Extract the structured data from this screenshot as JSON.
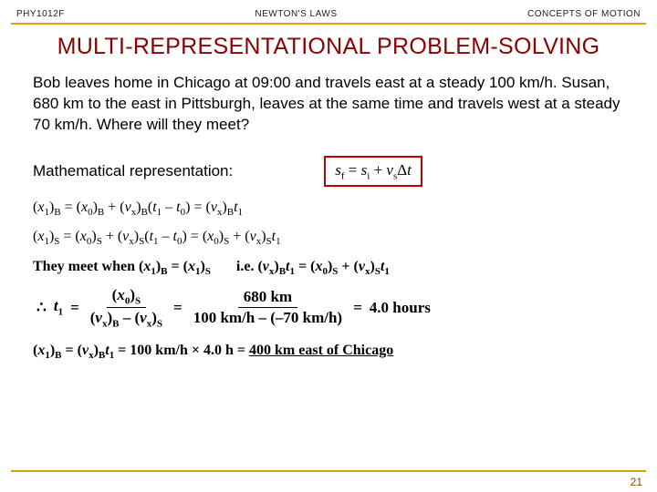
{
  "header": {
    "left": "PHY1012F",
    "center": "NEWTON'S LAWS",
    "right": "CONCEPTS OF MOTION"
  },
  "title": "MULTI-REPRESENTATIONAL PROBLEM-SOLVING",
  "problem_text": "Bob leaves home in Chicago at 09:00 and travels east at a steady 100 km/h.  Susan, 680 km to the east in Pittsburgh, leaves at the same time and travels west at a steady 70 km/h.  Where will they meet?",
  "mathrep_label": "Mathematical representation:",
  "boxed": {
    "sf": "s",
    "sf_sub": "f",
    "eq": " = ",
    "si": "s",
    "si_sub": "i",
    "plus": " + ",
    "vs": "v",
    "vs_sub": "s",
    "dt": "Δ",
    "t": "t"
  },
  "eq1": {
    "lhs_open": "(",
    "lhs_var": "x",
    "lhs_sub1": "1",
    "lhs_close": ")",
    "lhs_sub2": "B",
    "mid1": " = (",
    "v0": "x",
    "v0_sub": "0",
    "mid1c": ")",
    "mid1_sub": "B",
    "mid2": " + (",
    "vx": "v",
    "vx_sub": "x",
    "mid2c": ")",
    "mid2_sub": "B",
    "op": "(",
    "t1": "t",
    "t1_sub": "1",
    "minus": " – ",
    "t0": "t",
    "t0_sub": "0",
    "cp": ")",
    "eq2": "  =  (",
    "rv": "v",
    "rv_sub": "x",
    "rc": ")",
    "rc_sub": "B",
    "rt": "t",
    "rt_sub": "1"
  },
  "eq2": {
    "lhs_open": "(",
    "lhs_var": "x",
    "lhs_sub1": "1",
    "lhs_close": ")",
    "lhs_sub2": "S",
    "mid1": " = (",
    "v0": "x",
    "v0_sub": "0",
    "mid1c": ")",
    "mid1_sub": "S",
    "mid2": " + (",
    "vx": "v",
    "vx_sub": "x",
    "mid2c": ")",
    "mid2_sub": "S",
    "op": "(",
    "t1": "t",
    "t1_sub": "1",
    "minus": " – ",
    "t0": "t",
    "t0_sub": "0",
    "cp": ")",
    "eq2": "  =  (",
    "r0": "x",
    "r0_sub": "0",
    "r0c": ")",
    "r0c_sub": "S",
    "plus": " + (",
    "rv": "v",
    "rv_sub": "x",
    "rc": ")",
    "rc_sub": "S",
    "rt": "t",
    "rt_sub": "1"
  },
  "meet": {
    "pre": "They meet when  (",
    "x1": "x",
    "x1_s1": "1",
    "c1": ")",
    "c1s": "B",
    "eq": " = (",
    "x1b": "x",
    "x1b_s": "1",
    "c2": ")",
    "c2s": "S",
    "ie": "       i.e. (",
    "vb": "v",
    "vb_s": "x",
    "vc": ")",
    "vc_s": "B",
    "tb": "t",
    "tb_s": "1",
    "eq2": " = (",
    "x0": "x",
    "x0_s": "0",
    "xc": ")",
    "xc_s": "S",
    "plus": " + (",
    "vs": "v",
    "vs_s": "x",
    "vsc": ")",
    "vsc_s": "S",
    "ts": "t",
    "ts_s": "1"
  },
  "deriv": {
    "therefore": "∴ ",
    "t1": "t",
    "t1_sub": "1",
    "eq": " = ",
    "num1_o": "(",
    "num1_v": "x",
    "num1_s": "0",
    "num1_c": ")",
    "num1_cs": "S",
    "den1_o": "(",
    "den1_v": "v",
    "den1_s": "x",
    "den1_c": ")",
    "den1_cs": "B",
    "den1_m": " – (",
    "den1_v2": "v",
    "den1_s2": "x",
    "den1_c2": ")",
    "den1_cs2": "S",
    "eq2": " = ",
    "num2": "680 km",
    "den2": "100 km/h – (–70 km/h)",
    "eq3": " = ",
    "ans": "4.0 hours"
  },
  "final": {
    "open": "(",
    "x1": "x",
    "x1_s": "1",
    "c": ")",
    "cs": "B",
    "eq": " = (",
    "v": "v",
    "v_s": "x",
    "vc": ")",
    "vc_s": "B",
    "t": "t",
    "t_s": "1",
    "eq2": " = 100 km/h × 4.0 h = ",
    "answer": "400 km east of Chicago"
  },
  "page_number": "21",
  "colors": {
    "accent": "#d9a300",
    "title": "#8b0000",
    "box": "#c00000"
  }
}
